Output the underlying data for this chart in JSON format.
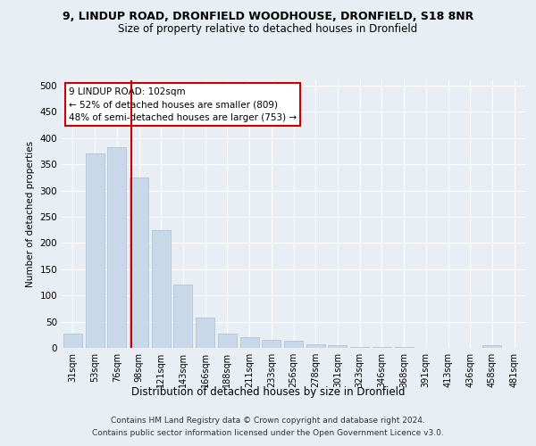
{
  "title_line1": "9, LINDUP ROAD, DRONFIELD WOODHOUSE, DRONFIELD, S18 8NR",
  "title_line2": "Size of property relative to detached houses in Dronfield",
  "xlabel": "Distribution of detached houses by size in Dronfield",
  "ylabel": "Number of detached properties",
  "categories": [
    "31sqm",
    "53sqm",
    "76sqm",
    "98sqm",
    "121sqm",
    "143sqm",
    "166sqm",
    "188sqm",
    "211sqm",
    "233sqm",
    "256sqm",
    "278sqm",
    "301sqm",
    "323sqm",
    "346sqm",
    "368sqm",
    "391sqm",
    "413sqm",
    "436sqm",
    "458sqm",
    "481sqm"
  ],
  "values": [
    27,
    370,
    383,
    325,
    225,
    121,
    57,
    27,
    20,
    15,
    13,
    7,
    5,
    1,
    1,
    1,
    0,
    0,
    0,
    5,
    0
  ],
  "bar_color": "#c8d8e8",
  "bar_edge_color": "#a8bfd0",
  "vline_color": "#cc0000",
  "vline_pos": 2.67,
  "annotation_text": "9 LINDUP ROAD: 102sqm\n← 52% of detached houses are smaller (809)\n48% of semi-detached houses are larger (753) →",
  "box_facecolor": "#ffffff",
  "box_edgecolor": "#cc0000",
  "ylim": [
    0,
    510
  ],
  "yticks": [
    0,
    50,
    100,
    150,
    200,
    250,
    300,
    350,
    400,
    450,
    500
  ],
  "footer_line1": "Contains HM Land Registry data © Crown copyright and database right 2024.",
  "footer_line2": "Contains public sector information licensed under the Open Government Licence v3.0.",
  "bg_color": "#e8eef4",
  "plot_bg_color": "#e8eef4",
  "grid_color": "#ffffff"
}
